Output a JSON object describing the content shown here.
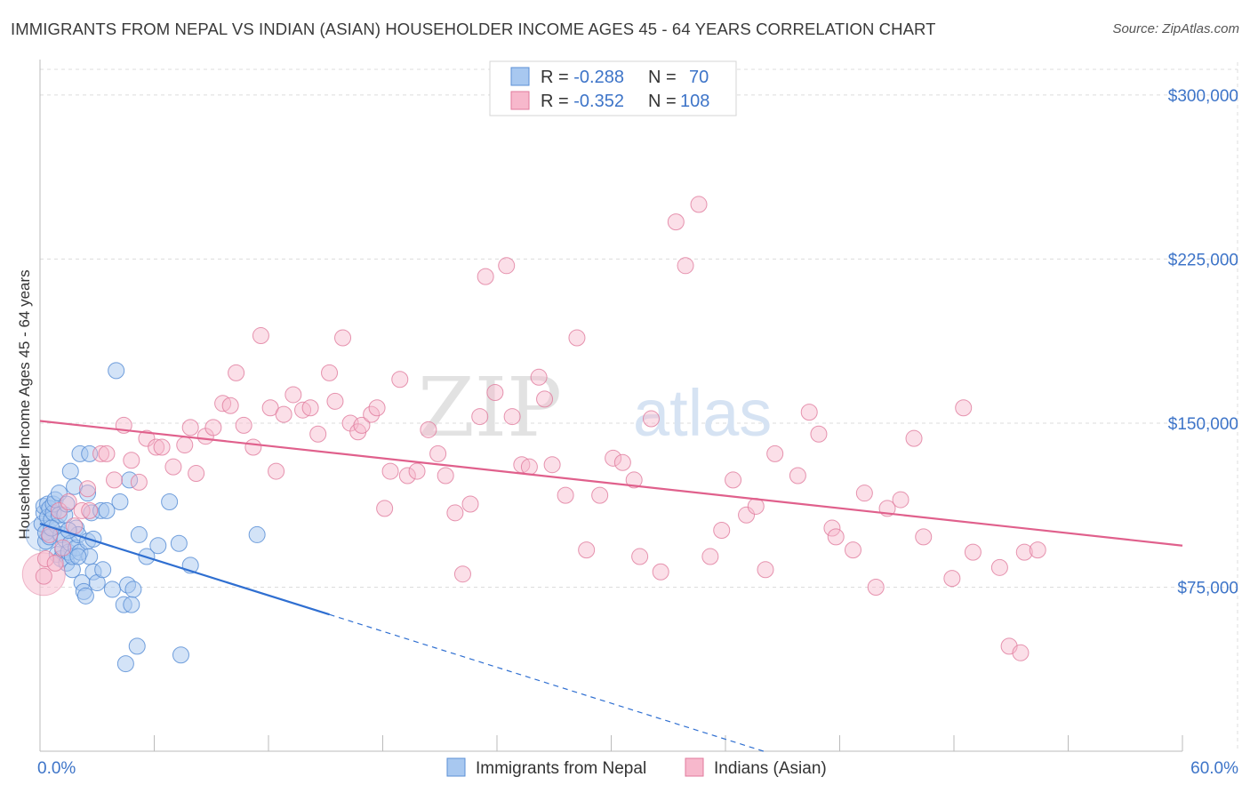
{
  "header": {
    "title": "IMMIGRANTS FROM NEPAL VS INDIAN (ASIAN) HOUSEHOLDER INCOME AGES 45 - 64 YEARS CORRELATION CHART",
    "source": "Source: ZipAtlas.com"
  },
  "watermark": {
    "zip": "ZIP",
    "atlas": "atlas"
  },
  "colors": {
    "nepal_fill": "#a8c8f0",
    "nepal_stroke": "#5b8fd6",
    "nepal_line": "#2f6fd1",
    "indian_fill": "#f7b8cc",
    "indian_stroke": "#e07a9c",
    "indian_line": "#e0608c",
    "tick_label": "#3d74c8",
    "grid": "#dcdcdc"
  },
  "legend_top": {
    "rows": [
      {
        "r_label": "R = ",
        "r_value": "-0.288",
        "n_label": "N = ",
        "n_value": "70"
      },
      {
        "r_label": "R = ",
        "r_value": "-0.352",
        "n_label": "N = ",
        "n_value": "108"
      }
    ]
  },
  "chart_data": {
    "type": "scatter",
    "title": "IMMIGRANTS FROM NEPAL VS INDIAN (ASIAN) HOUSEHOLDER INCOME AGES 45 - 64 YEARS CORRELATION CHART",
    "xlabel": "",
    "ylabel": "Householder Income Ages 45 - 64 years",
    "xlim": [
      0,
      60
    ],
    "ylim": [
      0,
      315000
    ],
    "x_tick_labels": [
      "0.0%",
      "60.0%"
    ],
    "y_ticks": [
      75000,
      150000,
      225000,
      300000
    ],
    "y_tick_labels": [
      "$75,000",
      "$150,000",
      "$225,000",
      "$300,000"
    ],
    "grid": true,
    "legend": "bottom-center",
    "series": [
      {
        "name": "Immigrants from Nepal",
        "r": -0.288,
        "n": 70,
        "trend": {
          "x0": 0,
          "y0": 104000,
          "x1": 15.2,
          "y1": 62500,
          "dash_x1": 38,
          "dash_y1": 0
        },
        "points": [
          [
            0.1,
            104000
          ],
          [
            0.2,
            109000
          ],
          [
            0.2,
            112000
          ],
          [
            0.3,
            96000
          ],
          [
            0.3,
            100000
          ],
          [
            0.4,
            113000
          ],
          [
            0.4,
            107000
          ],
          [
            0.5,
            111000
          ],
          [
            0.5,
            98000
          ],
          [
            0.6,
            106000
          ],
          [
            0.7,
            109000
          ],
          [
            0.7,
            113000
          ],
          [
            0.8,
            115000
          ],
          [
            0.9,
            90000
          ],
          [
            0.9,
            103000
          ],
          [
            1.0,
            118000
          ],
          [
            1.0,
            108000
          ],
          [
            1.1,
            88000
          ],
          [
            1.1,
            99000
          ],
          [
            1.2,
            92000
          ],
          [
            1.3,
            97000
          ],
          [
            1.3,
            108000
          ],
          [
            1.4,
            86000
          ],
          [
            1.4,
            113000
          ],
          [
            1.5,
            91000
          ],
          [
            1.6,
            95000
          ],
          [
            1.6,
            128000
          ],
          [
            1.7,
            83000
          ],
          [
            1.7,
            89000
          ],
          [
            1.8,
            121000
          ],
          [
            1.9,
            93000
          ],
          [
            1.9,
            102000
          ],
          [
            2.0,
            99000
          ],
          [
            2.1,
            136000
          ],
          [
            2.1,
            91000
          ],
          [
            2.2,
            77000
          ],
          [
            2.3,
            73000
          ],
          [
            2.4,
            71000
          ],
          [
            2.5,
            96000
          ],
          [
            2.5,
            118000
          ],
          [
            2.6,
            89000
          ],
          [
            2.6,
            136000
          ],
          [
            2.7,
            109000
          ],
          [
            2.8,
            82000
          ],
          [
            2.8,
            97000
          ],
          [
            3.0,
            77000
          ],
          [
            3.2,
            110000
          ],
          [
            3.3,
            83000
          ],
          [
            3.8,
            74000
          ],
          [
            4.0,
            174000
          ],
          [
            4.2,
            114000
          ],
          [
            4.4,
            67000
          ],
          [
            4.5,
            40000
          ],
          [
            4.6,
            76000
          ],
          [
            4.7,
            124000
          ],
          [
            4.8,
            67000
          ],
          [
            4.9,
            74000
          ],
          [
            5.1,
            48000
          ],
          [
            5.2,
            99000
          ],
          [
            5.6,
            89000
          ],
          [
            6.2,
            94000
          ],
          [
            6.8,
            114000
          ],
          [
            7.3,
            95000
          ],
          [
            7.4,
            44000
          ],
          [
            7.9,
            85000
          ],
          [
            11.4,
            99000
          ],
          [
            1.5,
            101000
          ],
          [
            2.0,
            89000
          ],
          [
            0.6,
            102000
          ],
          [
            3.5,
            110000
          ]
        ]
      },
      {
        "name": "Indians (Asian)",
        "r": -0.352,
        "n": 108,
        "trend": {
          "x0": 0,
          "y0": 151000,
          "x1": 60,
          "y1": 94000
        },
        "points": [
          [
            0.2,
            80000
          ],
          [
            0.3,
            88000
          ],
          [
            0.5,
            99000
          ],
          [
            0.8,
            86000
          ],
          [
            1.0,
            110000
          ],
          [
            1.2,
            93000
          ],
          [
            1.5,
            114000
          ],
          [
            1.8,
            103000
          ],
          [
            2.2,
            110000
          ],
          [
            2.5,
            120000
          ],
          [
            2.6,
            110000
          ],
          [
            3.2,
            136000
          ],
          [
            3.5,
            136000
          ],
          [
            3.9,
            124000
          ],
          [
            4.4,
            149000
          ],
          [
            4.8,
            133000
          ],
          [
            5.2,
            123000
          ],
          [
            5.6,
            143000
          ],
          [
            6.1,
            139000
          ],
          [
            6.4,
            139000
          ],
          [
            7.0,
            130000
          ],
          [
            7.6,
            140000
          ],
          [
            7.9,
            148000
          ],
          [
            8.2,
            127000
          ],
          [
            8.7,
            144000
          ],
          [
            9.1,
            148000
          ],
          [
            9.6,
            159000
          ],
          [
            10.0,
            158000
          ],
          [
            10.3,
            173000
          ],
          [
            10.7,
            149000
          ],
          [
            11.2,
            139000
          ],
          [
            11.6,
            190000
          ],
          [
            12.1,
            157000
          ],
          [
            12.4,
            128000
          ],
          [
            12.8,
            154000
          ],
          [
            13.3,
            163000
          ],
          [
            13.8,
            156000
          ],
          [
            14.2,
            157000
          ],
          [
            14.6,
            145000
          ],
          [
            15.2,
            173000
          ],
          [
            15.5,
            160000
          ],
          [
            15.9,
            189000
          ],
          [
            16.3,
            150000
          ],
          [
            16.7,
            146000
          ],
          [
            16.9,
            149000
          ],
          [
            17.4,
            154000
          ],
          [
            17.7,
            157000
          ],
          [
            18.1,
            111000
          ],
          [
            18.4,
            128000
          ],
          [
            18.9,
            170000
          ],
          [
            19.3,
            126000
          ],
          [
            19.8,
            128000
          ],
          [
            20.4,
            147000
          ],
          [
            20.9,
            136000
          ],
          [
            21.3,
            126000
          ],
          [
            21.8,
            109000
          ],
          [
            22.2,
            81000
          ],
          [
            22.6,
            113000
          ],
          [
            23.1,
            153000
          ],
          [
            23.4,
            217000
          ],
          [
            23.9,
            164000
          ],
          [
            24.5,
            222000
          ],
          [
            24.8,
            153000
          ],
          [
            25.3,
            131000
          ],
          [
            25.7,
            130000
          ],
          [
            26.2,
            171000
          ],
          [
            26.5,
            161000
          ],
          [
            26.9,
            131000
          ],
          [
            27.6,
            117000
          ],
          [
            28.2,
            189000
          ],
          [
            28.7,
            92000
          ],
          [
            29.4,
            117000
          ],
          [
            30.1,
            134000
          ],
          [
            30.6,
            132000
          ],
          [
            31.2,
            124000
          ],
          [
            31.5,
            89000
          ],
          [
            32.1,
            152000
          ],
          [
            32.6,
            82000
          ],
          [
            33.4,
            242000
          ],
          [
            33.9,
            222000
          ],
          [
            34.6,
            250000
          ],
          [
            35.2,
            89000
          ],
          [
            35.8,
            101000
          ],
          [
            36.4,
            124000
          ],
          [
            37.1,
            108000
          ],
          [
            37.6,
            112000
          ],
          [
            38.1,
            83000
          ],
          [
            38.6,
            136000
          ],
          [
            39.8,
            126000
          ],
          [
            40.4,
            155000
          ],
          [
            40.9,
            145000
          ],
          [
            41.6,
            102000
          ],
          [
            41.8,
            98000
          ],
          [
            42.7,
            92000
          ],
          [
            43.3,
            118000
          ],
          [
            43.9,
            75000
          ],
          [
            44.5,
            111000
          ],
          [
            45.2,
            115000
          ],
          [
            45.9,
            143000
          ],
          [
            46.4,
            98000
          ],
          [
            47.9,
            79000
          ],
          [
            48.5,
            157000
          ],
          [
            49.0,
            91000
          ],
          [
            50.4,
            84000
          ],
          [
            50.9,
            48000
          ],
          [
            51.5,
            45000
          ],
          [
            51.7,
            91000
          ],
          [
            52.4,
            92000
          ]
        ]
      }
    ]
  },
  "legend_bottom": {
    "items": [
      {
        "label": "Immigrants from Nepal"
      },
      {
        "label": "Indians (Asian)"
      }
    ]
  }
}
